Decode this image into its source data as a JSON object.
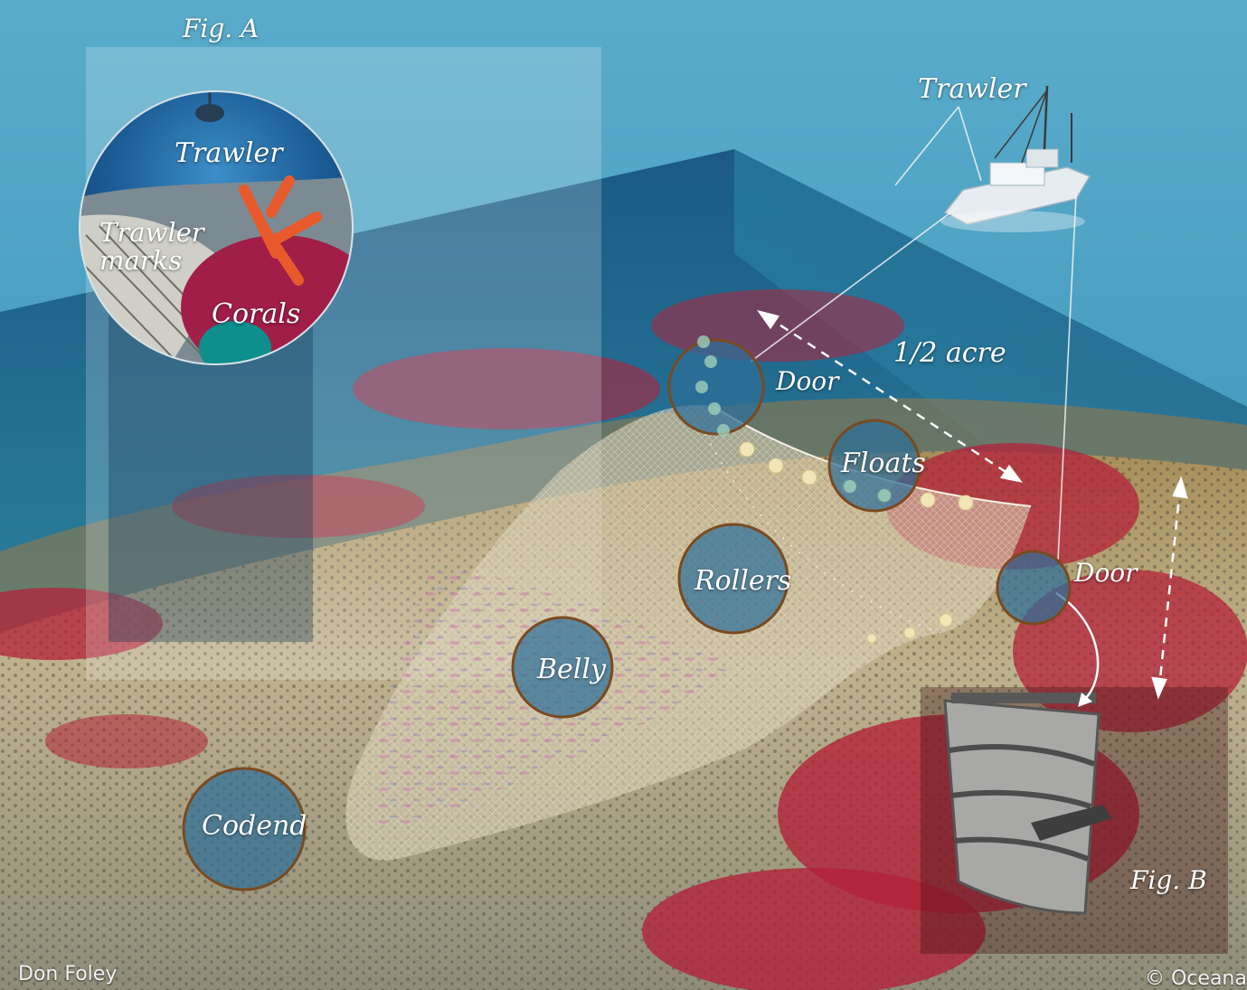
{
  "figure_a": {
    "title": "Fig. A",
    "inset_labels": {
      "trawler": "Trawler",
      "trawler_marks_line1": "Trawler",
      "trawler_marks_line2": "marks",
      "corals": "Corals"
    }
  },
  "trawler_label": "Trawler",
  "net_parts": {
    "door_left": "Door",
    "floats": "Floats",
    "door_right": "Door",
    "rollers": "Rollers",
    "belly": "Belly",
    "codend": "Codend"
  },
  "measurement": "1/2 acre",
  "figure_b": {
    "title": "Fig. B"
  },
  "credits": {
    "artist": "Don Foley",
    "copyright": "© Oceana"
  },
  "colors": {
    "ocean_surface": "#3f9bbd",
    "deep_water": "#1e5f8c",
    "seafloor": "#b9ad8c",
    "coral": "#b3223a",
    "callout_circle": "#2e6f98"
  }
}
